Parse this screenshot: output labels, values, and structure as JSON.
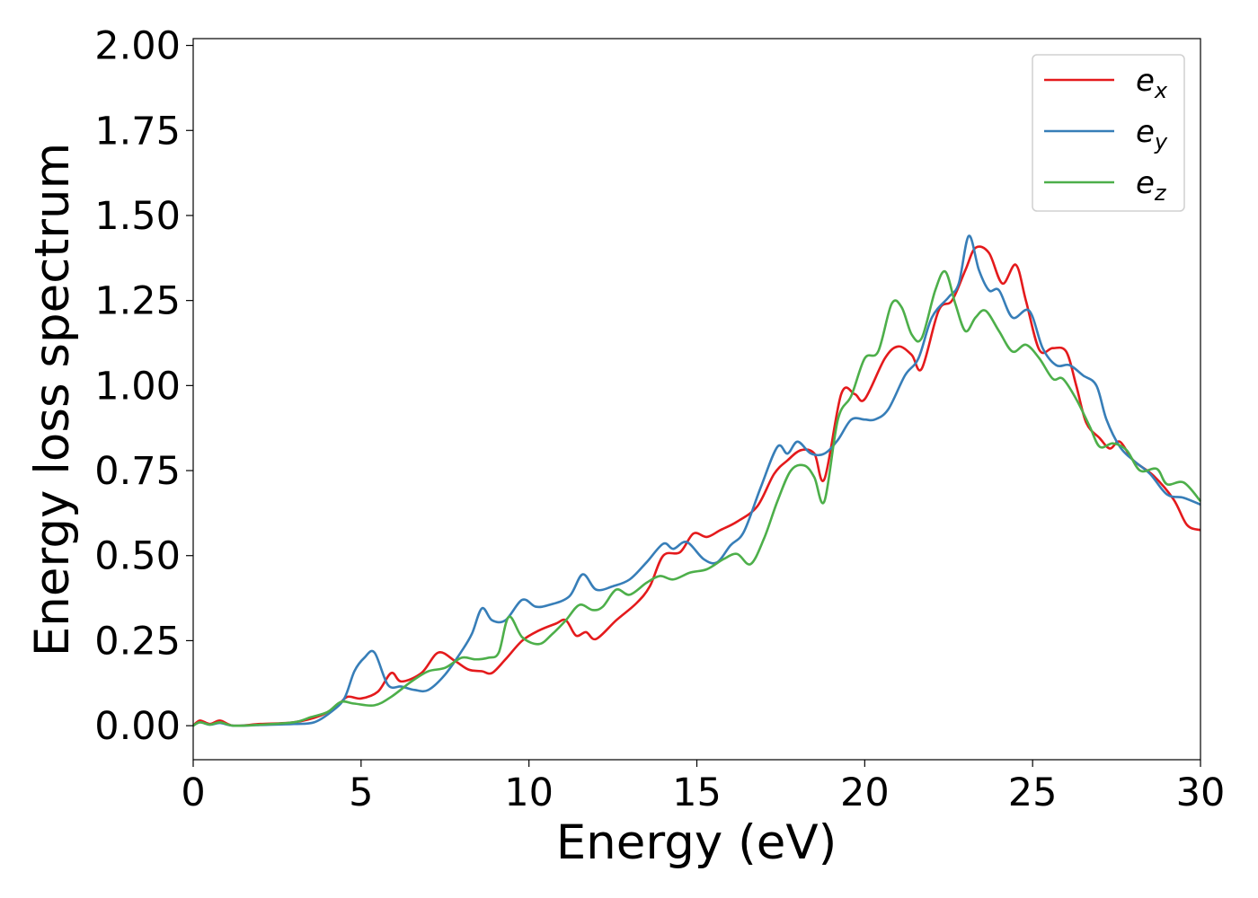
{
  "chart_data": {
    "type": "line",
    "title": "",
    "xlabel": "Energy (eV)",
    "ylabel": "Energy loss spectrum",
    "xlim": [
      0,
      30
    ],
    "ylim": [
      -0.1,
      2.02
    ],
    "xticks": [
      0,
      5,
      10,
      15,
      20,
      25,
      30
    ],
    "xtick_labels": [
      "0",
      "5",
      "10",
      "15",
      "20",
      "25",
      "30"
    ],
    "yticks": [
      0,
      0.25,
      0.5,
      0.75,
      1.0,
      1.25,
      1.5,
      1.75,
      2.0
    ],
    "ytick_labels": [
      "0.00",
      "0.25",
      "0.50",
      "0.75",
      "1.00",
      "1.25",
      "1.50",
      "1.75",
      "2.00"
    ],
    "grid": false,
    "legend_position": "top-right",
    "series": [
      {
        "name": "e",
        "subscript": "x",
        "color": "#e41a1c",
        "points": [
          [
            0,
            0.0
          ],
          [
            0.2,
            0.015
          ],
          [
            0.5,
            0.005
          ],
          [
            0.8,
            0.015
          ],
          [
            1.2,
            0.0
          ],
          [
            2.0,
            0.005
          ],
          [
            3.0,
            0.01
          ],
          [
            3.8,
            0.03
          ],
          [
            4.3,
            0.06
          ],
          [
            4.6,
            0.085
          ],
          [
            5.0,
            0.08
          ],
          [
            5.5,
            0.1
          ],
          [
            5.9,
            0.155
          ],
          [
            6.2,
            0.13
          ],
          [
            6.8,
            0.155
          ],
          [
            7.3,
            0.215
          ],
          [
            7.8,
            0.19
          ],
          [
            8.2,
            0.165
          ],
          [
            8.6,
            0.16
          ],
          [
            8.9,
            0.155
          ],
          [
            9.3,
            0.195
          ],
          [
            9.8,
            0.25
          ],
          [
            10.3,
            0.28
          ],
          [
            10.8,
            0.3
          ],
          [
            11.1,
            0.31
          ],
          [
            11.4,
            0.265
          ],
          [
            11.7,
            0.275
          ],
          [
            12.0,
            0.255
          ],
          [
            12.6,
            0.31
          ],
          [
            13.2,
            0.36
          ],
          [
            13.6,
            0.41
          ],
          [
            14.0,
            0.5
          ],
          [
            14.5,
            0.51
          ],
          [
            14.9,
            0.565
          ],
          [
            15.3,
            0.555
          ],
          [
            15.7,
            0.575
          ],
          [
            16.2,
            0.6
          ],
          [
            16.8,
            0.645
          ],
          [
            17.3,
            0.74
          ],
          [
            17.7,
            0.78
          ],
          [
            18.1,
            0.81
          ],
          [
            18.5,
            0.8
          ],
          [
            18.8,
            0.725
          ],
          [
            19.3,
            0.975
          ],
          [
            19.7,
            0.975
          ],
          [
            20.0,
            0.96
          ],
          [
            20.6,
            1.08
          ],
          [
            21.0,
            1.115
          ],
          [
            21.4,
            1.09
          ],
          [
            21.7,
            1.05
          ],
          [
            22.2,
            1.22
          ],
          [
            22.6,
            1.25
          ],
          [
            23.0,
            1.34
          ],
          [
            23.3,
            1.405
          ],
          [
            23.7,
            1.39
          ],
          [
            24.1,
            1.3
          ],
          [
            24.5,
            1.355
          ],
          [
            24.8,
            1.25
          ],
          [
            25.2,
            1.105
          ],
          [
            25.6,
            1.11
          ],
          [
            26.0,
            1.1
          ],
          [
            26.3,
            1.0
          ],
          [
            26.6,
            0.89
          ],
          [
            27.0,
            0.845
          ],
          [
            27.3,
            0.815
          ],
          [
            27.6,
            0.835
          ],
          [
            28.0,
            0.78
          ],
          [
            28.6,
            0.735
          ],
          [
            29.2,
            0.665
          ],
          [
            29.6,
            0.59
          ],
          [
            30.0,
            0.575
          ]
        ]
      },
      {
        "name": "e",
        "subscript": "y",
        "color": "#377eb8",
        "points": [
          [
            0,
            0.0
          ],
          [
            0.2,
            0.01
          ],
          [
            0.5,
            0.003
          ],
          [
            0.8,
            0.008
          ],
          [
            1.2,
            0.0
          ],
          [
            2.0,
            0.002
          ],
          [
            3.0,
            0.005
          ],
          [
            3.6,
            0.01
          ],
          [
            4.1,
            0.04
          ],
          [
            4.5,
            0.08
          ],
          [
            4.8,
            0.16
          ],
          [
            5.1,
            0.2
          ],
          [
            5.4,
            0.215
          ],
          [
            5.8,
            0.12
          ],
          [
            6.2,
            0.115
          ],
          [
            6.6,
            0.105
          ],
          [
            7.0,
            0.105
          ],
          [
            7.5,
            0.15
          ],
          [
            8.0,
            0.22
          ],
          [
            8.3,
            0.27
          ],
          [
            8.6,
            0.345
          ],
          [
            8.9,
            0.31
          ],
          [
            9.3,
            0.31
          ],
          [
            9.8,
            0.37
          ],
          [
            10.2,
            0.35
          ],
          [
            10.6,
            0.355
          ],
          [
            11.2,
            0.38
          ],
          [
            11.6,
            0.445
          ],
          [
            12.0,
            0.4
          ],
          [
            12.5,
            0.41
          ],
          [
            13.0,
            0.43
          ],
          [
            13.5,
            0.48
          ],
          [
            14.0,
            0.535
          ],
          [
            14.3,
            0.52
          ],
          [
            14.7,
            0.54
          ],
          [
            15.2,
            0.49
          ],
          [
            15.6,
            0.48
          ],
          [
            16.0,
            0.53
          ],
          [
            16.4,
            0.57
          ],
          [
            16.9,
            0.7
          ],
          [
            17.4,
            0.82
          ],
          [
            17.7,
            0.8
          ],
          [
            18.0,
            0.835
          ],
          [
            18.4,
            0.8
          ],
          [
            18.8,
            0.8
          ],
          [
            19.2,
            0.84
          ],
          [
            19.6,
            0.9
          ],
          [
            20.0,
            0.9
          ],
          [
            20.3,
            0.9
          ],
          [
            20.7,
            0.93
          ],
          [
            21.2,
            1.03
          ],
          [
            21.6,
            1.08
          ],
          [
            22.0,
            1.2
          ],
          [
            22.5,
            1.26
          ],
          [
            22.8,
            1.3
          ],
          [
            23.1,
            1.44
          ],
          [
            23.4,
            1.34
          ],
          [
            23.7,
            1.28
          ],
          [
            24.0,
            1.28
          ],
          [
            24.4,
            1.2
          ],
          [
            24.9,
            1.22
          ],
          [
            25.3,
            1.11
          ],
          [
            25.7,
            1.06
          ],
          [
            26.1,
            1.06
          ],
          [
            26.5,
            1.03
          ],
          [
            26.9,
            1.0
          ],
          [
            27.2,
            0.9
          ],
          [
            27.6,
            0.82
          ],
          [
            28.0,
            0.78
          ],
          [
            28.5,
            0.74
          ],
          [
            29.0,
            0.68
          ],
          [
            29.5,
            0.67
          ],
          [
            30.0,
            0.65
          ]
        ]
      },
      {
        "name": "e",
        "subscript": "z",
        "color": "#4daf4a",
        "points": [
          [
            0,
            0.0
          ],
          [
            0.2,
            0.01
          ],
          [
            0.5,
            0.003
          ],
          [
            0.8,
            0.01
          ],
          [
            1.2,
            0.0
          ],
          [
            2.0,
            0.003
          ],
          [
            3.0,
            0.01
          ],
          [
            3.5,
            0.025
          ],
          [
            4.0,
            0.04
          ],
          [
            4.4,
            0.07
          ],
          [
            4.8,
            0.065
          ],
          [
            5.4,
            0.06
          ],
          [
            5.9,
            0.085
          ],
          [
            6.5,
            0.13
          ],
          [
            7.0,
            0.16
          ],
          [
            7.5,
            0.17
          ],
          [
            8.0,
            0.2
          ],
          [
            8.4,
            0.195
          ],
          [
            8.8,
            0.2
          ],
          [
            9.1,
            0.215
          ],
          [
            9.4,
            0.32
          ],
          [
            9.8,
            0.26
          ],
          [
            10.3,
            0.24
          ],
          [
            10.7,
            0.27
          ],
          [
            11.1,
            0.31
          ],
          [
            11.5,
            0.355
          ],
          [
            11.9,
            0.34
          ],
          [
            12.2,
            0.35
          ],
          [
            12.6,
            0.4
          ],
          [
            13.0,
            0.385
          ],
          [
            13.5,
            0.42
          ],
          [
            13.9,
            0.44
          ],
          [
            14.3,
            0.43
          ],
          [
            14.8,
            0.45
          ],
          [
            15.3,
            0.46
          ],
          [
            15.8,
            0.49
          ],
          [
            16.2,
            0.505
          ],
          [
            16.6,
            0.475
          ],
          [
            17.0,
            0.55
          ],
          [
            17.4,
            0.66
          ],
          [
            17.8,
            0.75
          ],
          [
            18.2,
            0.765
          ],
          [
            18.5,
            0.73
          ],
          [
            18.8,
            0.66
          ],
          [
            19.2,
            0.9
          ],
          [
            19.6,
            0.97
          ],
          [
            20.0,
            1.08
          ],
          [
            20.4,
            1.1
          ],
          [
            20.8,
            1.24
          ],
          [
            21.1,
            1.23
          ],
          [
            21.4,
            1.15
          ],
          [
            21.7,
            1.14
          ],
          [
            22.1,
            1.28
          ],
          [
            22.4,
            1.335
          ],
          [
            22.7,
            1.24
          ],
          [
            23.0,
            1.16
          ],
          [
            23.3,
            1.2
          ],
          [
            23.6,
            1.22
          ],
          [
            24.0,
            1.16
          ],
          [
            24.4,
            1.1
          ],
          [
            24.8,
            1.12
          ],
          [
            25.2,
            1.08
          ],
          [
            25.6,
            1.02
          ],
          [
            25.9,
            1.02
          ],
          [
            26.3,
            0.96
          ],
          [
            26.7,
            0.88
          ],
          [
            27.0,
            0.82
          ],
          [
            27.4,
            0.83
          ],
          [
            27.8,
            0.81
          ],
          [
            28.2,
            0.75
          ],
          [
            28.7,
            0.755
          ],
          [
            29.0,
            0.71
          ],
          [
            29.5,
            0.715
          ],
          [
            30.0,
            0.66
          ]
        ]
      }
    ]
  }
}
